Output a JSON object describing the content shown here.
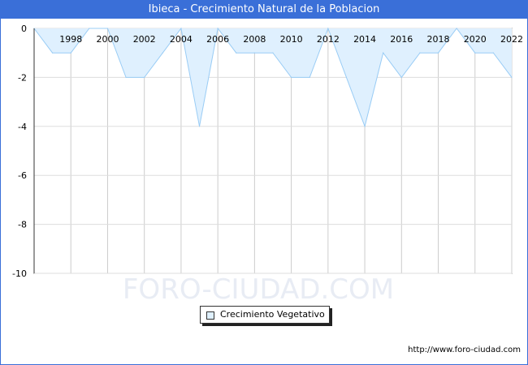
{
  "chart_data": {
    "type": "area",
    "title": "Ibieca - Crecimiento Natural de la Poblacion",
    "x": [
      1996,
      1997,
      1998,
      1999,
      2000,
      2001,
      2002,
      2003,
      2004,
      2005,
      2006,
      2007,
      2008,
      2009,
      2010,
      2011,
      2012,
      2013,
      2014,
      2015,
      2016,
      2017,
      2018,
      2019,
      2020,
      2021,
      2022
    ],
    "series": [
      {
        "name": "Crecimiento Vegetativo",
        "values": [
          0,
          -1,
          -1,
          0,
          0,
          -2,
          -2,
          -1,
          0,
          -4,
          0,
          -1,
          -1,
          -1,
          -2,
          -2,
          0,
          -2,
          -4,
          -1,
          -2,
          -1,
          -1,
          0,
          -1,
          -1,
          -2
        ]
      }
    ],
    "x_ticks": [
      "1998",
      "2000",
      "2002",
      "2004",
      "2006",
      "2008",
      "2010",
      "2012",
      "2014",
      "2016",
      "2018",
      "2020",
      "2022"
    ],
    "y_ticks": [
      "0",
      "-2",
      "-4",
      "-6",
      "-8",
      "-10"
    ],
    "ylim": [
      -10,
      0
    ],
    "grid": true,
    "legend_position": "bottom",
    "fill_color": "#dff0fe",
    "line_color": "#99ccf5",
    "watermark": "FORO-CIUDAD.COM",
    "source_url": "http://www.foro-ciudad.com"
  }
}
